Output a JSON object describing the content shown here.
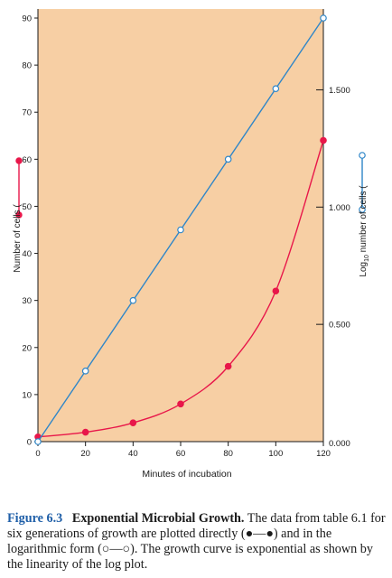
{
  "chart_data": {
    "type": "line",
    "xlabel": "Minutes of incubation",
    "ylabel_left": "Number of cells (",
    "ylabel_right": "Log",
    "ylabel_right_sub": "10",
    "ylabel_right_tail": " number of cells (",
    "x": [
      0,
      20,
      40,
      60,
      80,
      100,
      120
    ],
    "xlim": [
      0,
      120
    ],
    "ylim_left": [
      0,
      90
    ],
    "ylim_right": [
      0,
      1.806
    ],
    "x_ticks": [
      "0",
      "20",
      "40",
      "60",
      "80",
      "100",
      "120"
    ],
    "y_left_ticks": [
      "0",
      "10",
      "20",
      "30",
      "40",
      "50",
      "60",
      "70",
      "80",
      "90"
    ],
    "y_right_ticks": [
      {
        "value": 0,
        "label": "0.000"
      },
      {
        "value": 0.5,
        "label": "0.500"
      },
      {
        "value": 1.0,
        "label": "1.000"
      },
      {
        "value": 1.5,
        "label": "1.500"
      }
    ],
    "series": [
      {
        "name": "Number of cells",
        "axis": "left",
        "marker": "filled",
        "color": "#e8174a",
        "values": [
          1,
          2,
          4,
          8,
          16,
          32,
          64
        ]
      },
      {
        "name": "Log10 number of cells",
        "axis": "right",
        "marker": "open",
        "color": "#2f86c8",
        "values": [
          0.0,
          0.301,
          0.602,
          0.903,
          1.204,
          1.505,
          1.806
        ]
      }
    ],
    "plot_background": "#f7cfa4",
    "grid": false
  },
  "caption": {
    "figure_number": "Figure 6.3",
    "title": "Exponential Microbial Growth.",
    "text": " The data from table 6.1 for six generations of growth are plotted directly (●—●) and in the logarithmic form (○—○). The growth curve is exponential as shown by the linearity of the log plot."
  }
}
